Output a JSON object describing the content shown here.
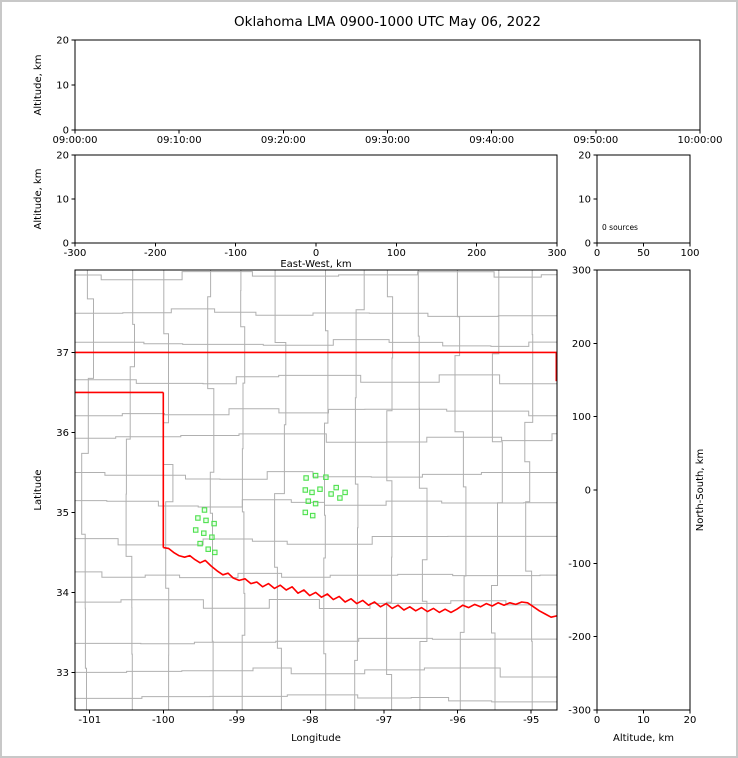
{
  "title": "Oklahoma LMA 0900-1000 UTC May 06, 2022",
  "colors": {
    "axis": "#000000",
    "background": "#ffffff",
    "outer_frame": "#c8c8c8",
    "county_lines": "#b0b0b0",
    "state_border": "#ff0000",
    "source_point_edge": "#4ee04e",
    "source_point_fill": "#ccffcc"
  },
  "chart_data": [
    {
      "id": "time_height",
      "type": "scatter",
      "xlabel": "",
      "ylabel": "Altitude, km",
      "xtick_labels": [
        "09:00:00",
        "09:10:00",
        "09:20:00",
        "09:30:00",
        "09:40:00",
        "09:50:00",
        "10:00:00"
      ],
      "ylim": [
        0,
        20
      ],
      "yticks": [
        0,
        10,
        20
      ],
      "points": []
    },
    {
      "id": "ew_height",
      "type": "scatter",
      "xlabel": "East-West, km",
      "ylabel": "Altitude, km",
      "xlim": [
        -300,
        300
      ],
      "xticks": [
        -300,
        -200,
        -100,
        0,
        100,
        200,
        300
      ],
      "ylim": [
        0,
        20
      ],
      "yticks": [
        0,
        10,
        20
      ],
      "points": []
    },
    {
      "id": "source_histogram",
      "type": "histogram",
      "annotation": "0 sources",
      "xlim": [
        0,
        100
      ],
      "xticks": [
        0,
        50,
        100
      ],
      "ylim": [
        0,
        20
      ],
      "yticks": [
        0,
        10,
        20
      ],
      "values": []
    },
    {
      "id": "plan_view_map",
      "type": "scatter",
      "xlabel": "Longitude",
      "ylabel": "Latitude",
      "xlim": [
        -101.2,
        -94.65
      ],
      "xticks": [
        -101,
        -100,
        -99,
        -98,
        -97,
        -96,
        -95
      ],
      "ylim": [
        32.53,
        38.03
      ],
      "yticks": [
        33,
        34,
        35,
        36,
        37
      ],
      "points": [
        [
          -99.44,
          35.03
        ],
        [
          -99.53,
          34.93
        ],
        [
          -99.42,
          34.9
        ],
        [
          -99.31,
          34.86
        ],
        [
          -99.56,
          34.78
        ],
        [
          -99.45,
          34.74
        ],
        [
          -99.34,
          34.69
        ],
        [
          -99.5,
          34.61
        ],
        [
          -99.39,
          34.54
        ],
        [
          -99.3,
          34.5
        ],
        [
          -98.06,
          35.43
        ],
        [
          -97.93,
          35.46
        ],
        [
          -97.79,
          35.44
        ],
        [
          -98.07,
          35.28
        ],
        [
          -97.98,
          35.25
        ],
        [
          -97.87,
          35.29
        ],
        [
          -98.03,
          35.14
        ],
        [
          -97.93,
          35.11
        ],
        [
          -98.07,
          35.0
        ],
        [
          -97.97,
          34.96
        ],
        [
          -97.72,
          35.23
        ],
        [
          -97.6,
          35.18
        ],
        [
          -97.53,
          35.25
        ],
        [
          -97.65,
          35.31
        ]
      ]
    },
    {
      "id": "height_ns",
      "type": "scatter",
      "xlabel": "Altitude, km",
      "ylabel": "North-South, km",
      "xlim": [
        0,
        20
      ],
      "xticks": [
        0,
        10,
        20
      ],
      "ylim": [
        -300,
        300
      ],
      "yticks": [
        -300,
        -200,
        -100,
        0,
        100,
        200,
        300
      ],
      "points": []
    }
  ],
  "map_overlay": {
    "state_border_segments": [
      [
        [
          -101.21,
          37.0
        ],
        [
          -94.64,
          37.0
        ]
      ],
      [
        [
          -94.66,
          37.0
        ],
        [
          -94.66,
          36.64
        ]
      ],
      [
        [
          -101.21,
          36.5
        ],
        [
          -100.0,
          36.5
        ]
      ],
      [
        [
          -100.0,
          36.5
        ],
        [
          -100.0,
          34.56
        ]
      ],
      [
        [
          -100.0,
          34.56
        ],
        [
          -99.93,
          34.55
        ],
        [
          -99.86,
          34.5
        ],
        [
          -99.79,
          34.46
        ],
        [
          -99.71,
          34.44
        ],
        [
          -99.64,
          34.46
        ],
        [
          -99.57,
          34.41
        ],
        [
          -99.5,
          34.37
        ],
        [
          -99.43,
          34.4
        ],
        [
          -99.35,
          34.33
        ],
        [
          -99.27,
          34.27
        ],
        [
          -99.19,
          34.22
        ],
        [
          -99.12,
          34.24
        ],
        [
          -99.05,
          34.18
        ],
        [
          -98.97,
          34.15
        ],
        [
          -98.89,
          34.17
        ],
        [
          -98.81,
          34.11
        ],
        [
          -98.73,
          34.13
        ],
        [
          -98.65,
          34.07
        ],
        [
          -98.57,
          34.11
        ],
        [
          -98.49,
          34.05
        ],
        [
          -98.41,
          34.09
        ],
        [
          -98.33,
          34.03
        ],
        [
          -98.25,
          34.07
        ],
        [
          -98.17,
          33.99
        ],
        [
          -98.09,
          34.03
        ],
        [
          -98.01,
          33.96
        ],
        [
          -97.93,
          34.0
        ],
        [
          -97.85,
          33.94
        ],
        [
          -97.77,
          33.98
        ],
        [
          -97.69,
          33.91
        ],
        [
          -97.61,
          33.95
        ],
        [
          -97.53,
          33.88
        ],
        [
          -97.45,
          33.92
        ],
        [
          -97.37,
          33.86
        ],
        [
          -97.29,
          33.9
        ],
        [
          -97.21,
          33.84
        ],
        [
          -97.13,
          33.88
        ],
        [
          -97.05,
          33.82
        ],
        [
          -96.97,
          33.86
        ],
        [
          -96.89,
          33.8
        ],
        [
          -96.81,
          33.84
        ],
        [
          -96.73,
          33.78
        ],
        [
          -96.65,
          33.82
        ],
        [
          -96.57,
          33.77
        ],
        [
          -96.49,
          33.81
        ],
        [
          -96.41,
          33.76
        ],
        [
          -96.33,
          33.8
        ],
        [
          -96.25,
          33.75
        ],
        [
          -96.17,
          33.79
        ],
        [
          -96.09,
          33.75
        ],
        [
          -96.01,
          33.79
        ],
        [
          -95.93,
          33.84
        ],
        [
          -95.85,
          33.81
        ],
        [
          -95.77,
          33.85
        ],
        [
          -95.69,
          33.82
        ],
        [
          -95.61,
          33.86
        ],
        [
          -95.53,
          33.83
        ],
        [
          -95.45,
          33.87
        ],
        [
          -95.37,
          33.84
        ],
        [
          -95.29,
          33.87
        ],
        [
          -95.21,
          33.85
        ],
        [
          -95.13,
          33.88
        ],
        [
          -95.05,
          33.87
        ],
        [
          -94.97,
          33.82
        ],
        [
          -94.89,
          33.77
        ],
        [
          -94.81,
          33.73
        ],
        [
          -94.73,
          33.69
        ],
        [
          -94.64,
          33.71
        ]
      ]
    ]
  }
}
